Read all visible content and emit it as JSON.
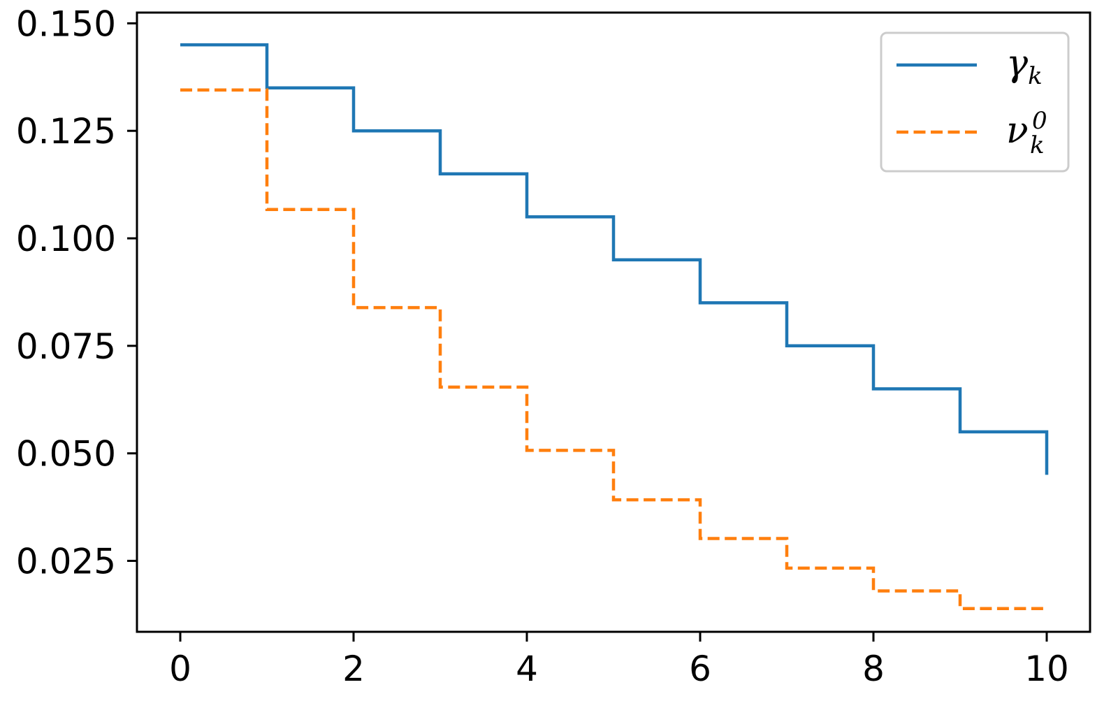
{
  "chart_data": {
    "type": "line",
    "drawstyle": "steps-post",
    "title": "",
    "xlabel": "",
    "ylabel": "",
    "xlim": [
      -0.5,
      10.5
    ],
    "ylim": [
      0.0085,
      0.1525
    ],
    "xticks": [
      0,
      2,
      4,
      6,
      8,
      10
    ],
    "xtick_labels": [
      "0",
      "2",
      "4",
      "6",
      "8",
      "10"
    ],
    "yticks": [
      0.025,
      0.05,
      0.075,
      0.1,
      0.125,
      0.15
    ],
    "ytick_labels": [
      "0.025",
      "0.050",
      "0.075",
      "0.100",
      "0.125",
      "0.150"
    ],
    "grid": false,
    "legend_position": "top-right",
    "x": [
      0,
      1,
      2,
      3,
      4,
      5,
      6,
      7,
      8,
      9,
      10
    ],
    "series": [
      {
        "name": "γ",
        "name_sub": "k",
        "name_sup": "",
        "color": "#1f77b4",
        "style": "solid",
        "values": [
          0.145,
          0.135,
          0.125,
          0.115,
          0.105,
          0.095,
          0.085,
          0.075,
          0.065,
          0.055,
          0.045
        ]
      },
      {
        "name": "ν",
        "name_sub": "k",
        "name_sup": "0",
        "color": "#ff7f0e",
        "style": "dashed",
        "values": [
          0.1345,
          0.1067,
          0.0839,
          0.0654,
          0.0507,
          0.0392,
          0.0302,
          0.0233,
          0.018,
          0.0139,
          0.0139
        ]
      }
    ]
  }
}
